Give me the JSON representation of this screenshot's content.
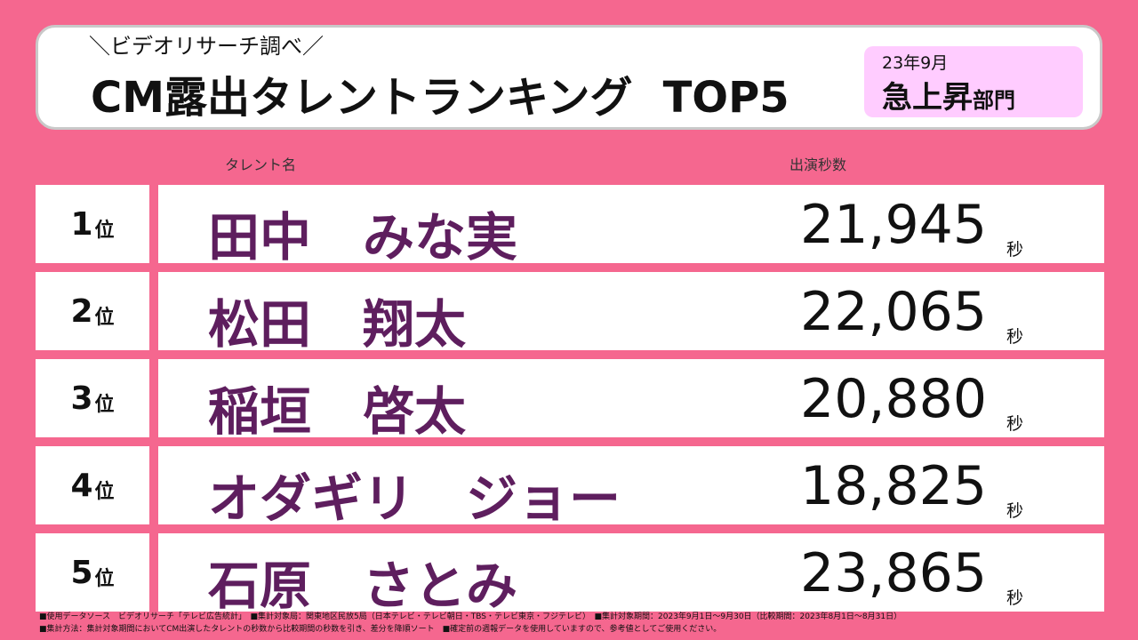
{
  "header": {
    "subtitle": "＼ビデオリサーチ調べ／",
    "title": "CM露出タレントランキング",
    "title_suffix": "TOP5",
    "tag_date": "23年9月",
    "tag_main": "急上昇",
    "tag_suffix": "部門"
  },
  "columns": {
    "name_label": "タレント名",
    "seconds_label": "出演秒数"
  },
  "rank_suffix": "位",
  "unit": "秒",
  "rows": [
    {
      "rank": "1",
      "name": "田中　みな実",
      "seconds": "21,945"
    },
    {
      "rank": "2",
      "name": "松田　翔太",
      "seconds": "22,065"
    },
    {
      "rank": "3",
      "name": "稲垣　啓太",
      "seconds": "20,880"
    },
    {
      "rank": "4",
      "name": "オダギリ　ジョー",
      "seconds": "18,825"
    },
    {
      "rank": "5",
      "name": "石原　さとみ",
      "seconds": "23,865"
    }
  ],
  "footer": {
    "line1": "■使用データソース　ビデオリサーチ「テレビ広告統計」　■集計対象局：関東地区民放5局（日本テレビ・テレビ朝日・TBS・テレビ東京・フジテレビ）　■集計対象期間：2023年9月1日～9月30日（比較期間：2023年8月1日～8月31日）",
    "line2": "■集計方法：集計対象期間においてCM出演したタレントの秒数から比較期間の秒数を引き、差分を降順ソート　■確定前の週報データを使用していますので、参考値としてご使用ください。"
  }
}
